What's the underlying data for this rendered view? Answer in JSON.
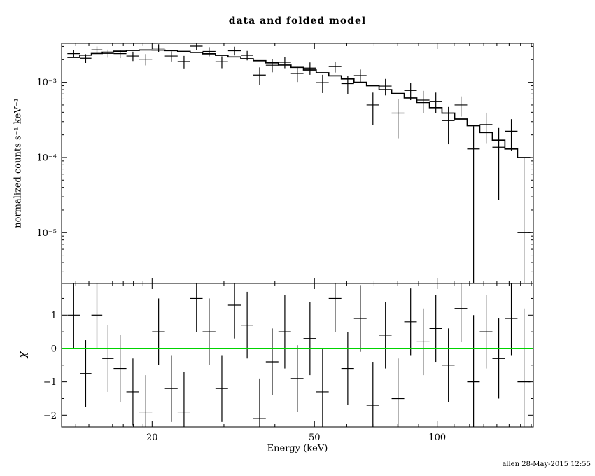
{
  "footer": "allen 28-May-2015 12:55",
  "chart_data": {
    "type": "scatter",
    "title": "data and folded model",
    "xlabel": "Energy (keV)",
    "ylabel_top": "normalized counts s⁻¹ keV⁻¹",
    "ylabel_bottom": "χ",
    "x_scale": "log",
    "x_range": [
      12,
      172
    ],
    "x_ticks": [
      {
        "v": 20,
        "label": "20"
      },
      {
        "v": 50,
        "label": "50"
      },
      {
        "v": 100,
        "label": "100"
      }
    ],
    "x_minor_ticks": [
      13,
      14,
      15,
      16,
      17,
      18,
      19,
      30,
      40,
      60,
      70,
      80,
      90,
      110,
      120,
      130,
      140,
      150,
      160,
      170
    ],
    "top_panel": {
      "y_scale": "log",
      "y_range": [
        2.1e-06,
        0.0033
      ],
      "y_ticks": [
        {
          "v": 0.001,
          "label": "10⁻³"
        },
        {
          "v": 0.0001,
          "label": "10⁻⁴"
        },
        {
          "v": 1e-05,
          "label": "10⁻⁵"
        }
      ]
    },
    "bottom_panel": {
      "y_scale": "linear",
      "y_range": [
        -2.35,
        1.95
      ],
      "y_ticks": [
        {
          "v": 1,
          "label": "1"
        },
        {
          "v": 0,
          "label": "0"
        },
        {
          "v": -1,
          "label": "−1"
        },
        {
          "v": -2,
          "label": "−2"
        }
      ],
      "zero_line_color": "#00d400"
    },
    "bins": [
      {
        "e": 12.85,
        "de": 0.45,
        "f": 0.00241,
        "df": 0.00026,
        "m": 0.00215,
        "chi": 1.0,
        "chi_err": 1.0
      },
      {
        "e": 13.75,
        "de": 0.45,
        "f": 0.00209,
        "df": 0.00028,
        "m": 0.0023,
        "chi": -0.75,
        "chi_err": 1.0
      },
      {
        "e": 14.65,
        "de": 0.45,
        "f": 0.00271,
        "df": 0.00029,
        "m": 0.00242,
        "chi": 1.0,
        "chi_err": 1.0
      },
      {
        "e": 15.6,
        "de": 0.5,
        "f": 0.00243,
        "df": 0.0003,
        "m": 0.00252,
        "chi": -0.3,
        "chi_err": 1.0
      },
      {
        "e": 16.7,
        "de": 0.6,
        "f": 0.00241,
        "df": 0.00031,
        "m": 0.0026,
        "chi": -0.6,
        "chi_err": 1.0
      },
      {
        "e": 17.95,
        "de": 0.65,
        "f": 0.00224,
        "df": 0.00032,
        "m": 0.00266,
        "chi": -1.3,
        "chi_err": 1.0
      },
      {
        "e": 19.3,
        "de": 0.7,
        "f": 0.00203,
        "df": 0.00035,
        "m": 0.0027,
        "chi": -1.9,
        "chi_err": 1.1
      },
      {
        "e": 20.75,
        "de": 0.75,
        "f": 0.00286,
        "df": 0.00035,
        "m": 0.00269,
        "chi": 0.5,
        "chi_err": 1.0
      },
      {
        "e": 22.3,
        "de": 0.8,
        "f": 0.00224,
        "df": 0.000345,
        "m": 0.00265,
        "chi": -1.2,
        "chi_err": 1.0
      },
      {
        "e": 23.95,
        "de": 0.85,
        "f": 0.00189,
        "df": 0.00036,
        "m": 0.00258,
        "chi": -1.9,
        "chi_err": 1.2
      },
      {
        "e": 25.7,
        "de": 0.9,
        "f": 0.00303,
        "df": 0.00035,
        "m": 0.0025,
        "chi": 1.5,
        "chi_err": 1.0
      },
      {
        "e": 27.6,
        "de": 1.0,
        "f": 0.00258,
        "df": 0.00036,
        "m": 0.0024,
        "chi": 0.5,
        "chi_err": 1.0
      },
      {
        "e": 29.65,
        "de": 1.05,
        "f": 0.00188,
        "df": 0.00034,
        "m": 0.00229,
        "chi": -1.2,
        "chi_err": 1.0
      },
      {
        "e": 31.85,
        "de": 1.15,
        "f": 0.00263,
        "df": 0.00035,
        "m": 0.00218,
        "chi": 1.3,
        "chi_err": 1.0
      },
      {
        "e": 34.2,
        "de": 1.2,
        "f": 0.00229,
        "df": 0.00033,
        "m": 0.00206,
        "chi": 0.7,
        "chi_err": 1.0
      },
      {
        "e": 36.7,
        "de": 1.3,
        "f": 0.00125,
        "df": 0.00033,
        "m": 0.00194,
        "chi": -2.1,
        "chi_err": 1.2
      },
      {
        "e": 39.4,
        "de": 1.4,
        "f": 0.00169,
        "df": 0.00033,
        "m": 0.00182,
        "chi": -0.4,
        "chi_err": 1.0
      },
      {
        "e": 42.3,
        "de": 1.5,
        "f": 0.00185,
        "df": 0.00031,
        "m": 0.0017,
        "chi": 0.5,
        "chi_err": 1.1
      },
      {
        "e": 45.4,
        "de": 1.6,
        "f": 0.00131,
        "df": 0.0003,
        "m": 0.00158,
        "chi": -0.9,
        "chi_err": 1.0
      },
      {
        "e": 48.75,
        "de": 1.75,
        "f": 0.00155,
        "df": 0.00029,
        "m": 0.00146,
        "chi": 0.3,
        "chi_err": 1.1
      },
      {
        "e": 52.35,
        "de": 1.85,
        "f": 0.00099,
        "df": 0.00027,
        "m": 0.00134,
        "chi": -1.3,
        "chi_err": 1.3
      },
      {
        "e": 56.2,
        "de": 2.0,
        "f": 0.00162,
        "df": 0.00027,
        "m": 0.00122,
        "chi": 1.5,
        "chi_err": 1.0
      },
      {
        "e": 60.35,
        "de": 2.15,
        "f": 0.00096,
        "df": 0.00026,
        "m": 0.00111,
        "chi": -0.6,
        "chi_err": 1.1
      },
      {
        "e": 64.8,
        "de": 2.3,
        "f": 0.00123,
        "df": 0.00025,
        "m": 0.001,
        "chi": 0.9,
        "chi_err": 1.0
      },
      {
        "e": 69.55,
        "de": 2.45,
        "f": 0.0005,
        "df": 0.00023,
        "m": 0.0009,
        "chi": -1.7,
        "chi_err": 1.3
      },
      {
        "e": 74.65,
        "de": 2.65,
        "f": 0.00089,
        "df": 0.00022,
        "m": 0.0008,
        "chi": 0.4,
        "chi_err": 1.0
      },
      {
        "e": 80.15,
        "de": 2.85,
        "f": 0.00039,
        "df": 0.00021,
        "m": 0.00071,
        "chi": -1.5,
        "chi_err": 1.2
      },
      {
        "e": 86.05,
        "de": 3.05,
        "f": 0.00078,
        "df": 0.0002,
        "m": 0.00062,
        "chi": 0.8,
        "chi_err": 1.0
      },
      {
        "e": 92.4,
        "de": 3.3,
        "f": 0.00058,
        "df": 0.00019,
        "m": 0.00054,
        "chi": 0.2,
        "chi_err": 1.0
      },
      {
        "e": 99.2,
        "de": 3.5,
        "f": 0.00056,
        "df": 0.00017,
        "m": 0.00046,
        "chi": 0.6,
        "chi_err": 1.0
      },
      {
        "e": 106.5,
        "de": 3.8,
        "f": 0.00031,
        "df": 0.00016,
        "m": 0.00039,
        "chi": -0.5,
        "chi_err": 1.1
      },
      {
        "e": 114.35,
        "de": 4.05,
        "f": 0.0005,
        "df": 0.00015,
        "m": 0.000325,
        "chi": 1.2,
        "chi_err": 1.0
      },
      {
        "e": 122.75,
        "de": 4.35,
        "f": 0.00013,
        "df": 0.00013,
        "m": 0.000265,
        "chi": -1.0,
        "chi_err": 2.0
      },
      {
        "e": 131.8,
        "de": 4.7,
        "f": 0.000275,
        "df": 0.00012,
        "m": 0.000215,
        "chi": 0.5,
        "chi_err": 1.1
      },
      {
        "e": 141.5,
        "de": 5.0,
        "f": 0.000137,
        "df": 0.00011,
        "m": 0.00017,
        "chi": -0.3,
        "chi_err": 1.2
      },
      {
        "e": 151.9,
        "de": 5.4,
        "f": 0.000224,
        "df": 0.0001,
        "m": 0.00013,
        "chi": 0.9,
        "chi_err": 1.1
      },
      {
        "e": 163.15,
        "de": 5.85,
        "f": 1e-05,
        "df": 9e-05,
        "m": 0.0001,
        "chi": -1.0,
        "chi_err": 2.2
      }
    ]
  }
}
